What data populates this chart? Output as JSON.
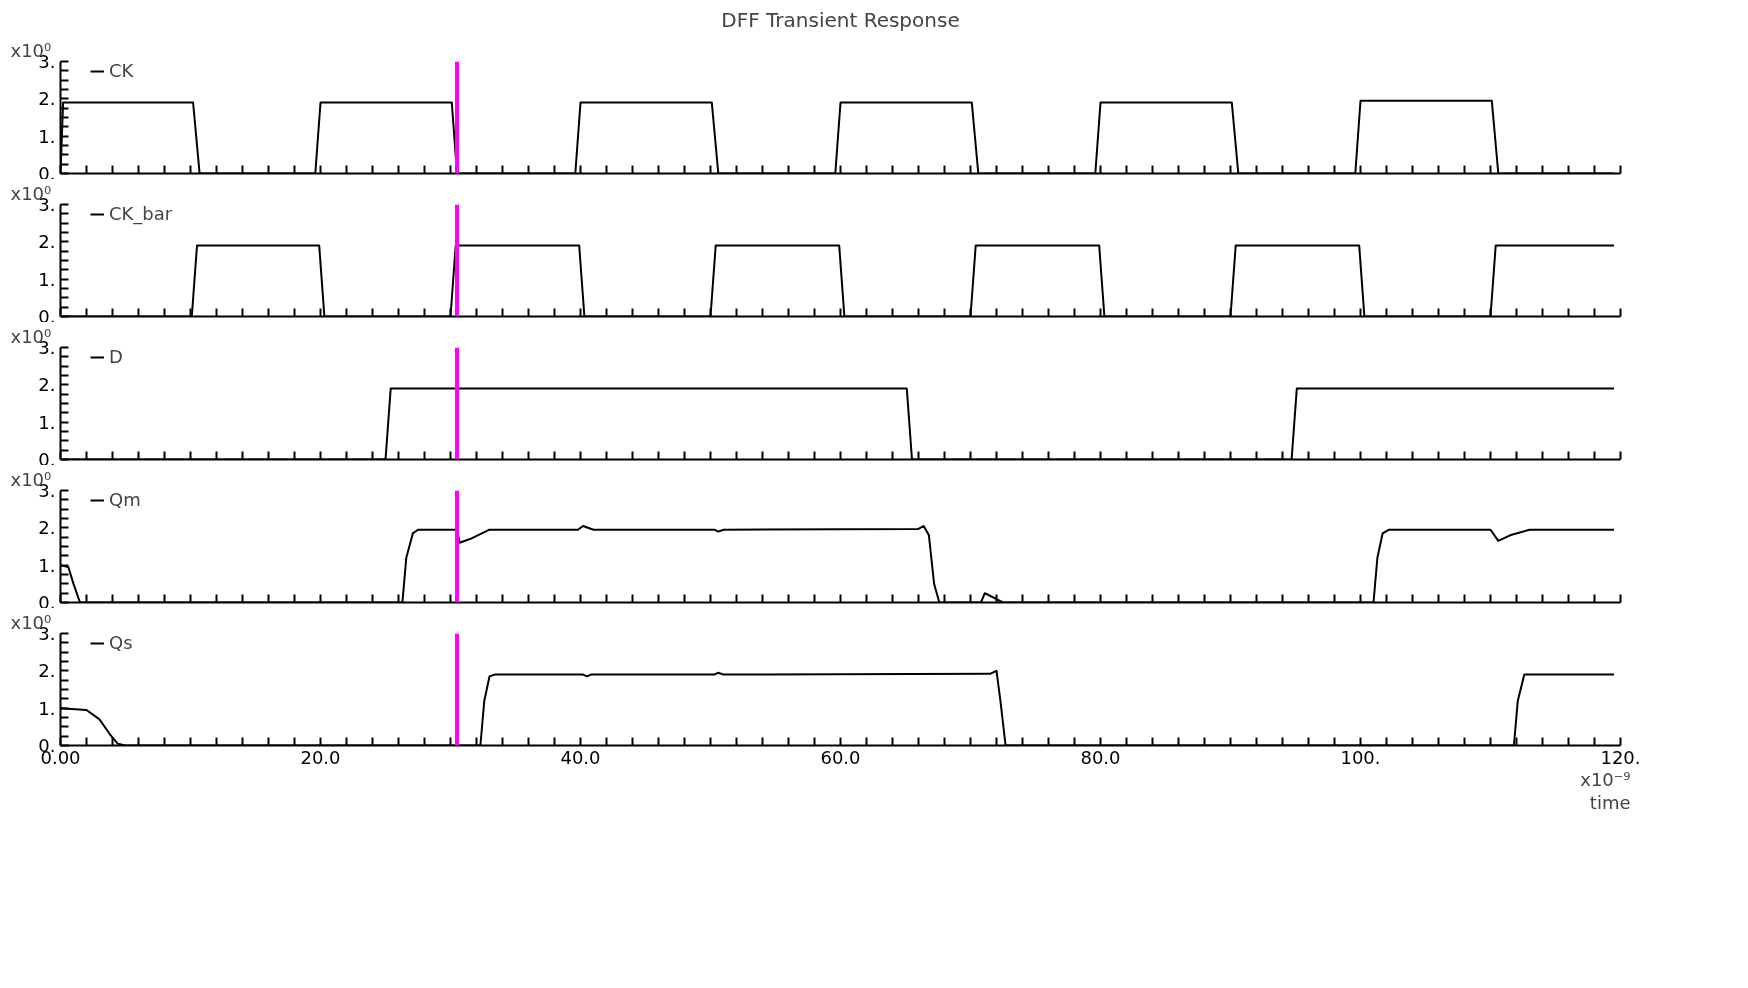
{
  "chart_data": [
    {
      "type": "line",
      "title": "DFF Transient Response",
      "ylabel": "x10⁰",
      "legend": "top left",
      "tick_labels": "y",
      "line_style": "solid",
      "xlim": [
        0,
        120
      ],
      "ylim": [
        0,
        3
      ],
      "xticks": [
        {
          "value": 0,
          "label": null
        },
        {
          "value": 2,
          "label": null
        },
        {
          "value": 4,
          "label": null
        },
        {
          "value": 6,
          "label": null
        },
        {
          "value": 8,
          "label": null
        },
        {
          "value": 10,
          "label": null
        },
        {
          "value": 12,
          "label": null
        },
        {
          "value": 14,
          "label": null
        },
        {
          "value": 16,
          "label": null
        },
        {
          "value": 18,
          "label": null
        },
        {
          "value": 20,
          "label": null
        },
        {
          "value": 22,
          "label": null
        },
        {
          "value": 24,
          "label": null
        },
        {
          "value": 26,
          "label": null
        },
        {
          "value": 28,
          "label": null
        },
        {
          "value": 30,
          "label": null
        },
        {
          "value": 32,
          "label": null
        },
        {
          "value": 34,
          "label": null
        },
        {
          "value": 36,
          "label": null
        },
        {
          "value": 38,
          "label": null
        },
        {
          "value": 40,
          "label": null
        },
        {
          "value": 42,
          "label": null
        },
        {
          "value": 44,
          "label": null
        },
        {
          "value": 46,
          "label": null
        },
        {
          "value": 48,
          "label": null
        },
        {
          "value": 50,
          "label": null
        },
        {
          "value": 52,
          "label": null
        },
        {
          "value": 54,
          "label": null
        },
        {
          "value": 56,
          "label": null
        },
        {
          "value": 58,
          "label": null
        },
        {
          "value": 60,
          "label": null
        },
        {
          "value": 62,
          "label": null
        },
        {
          "value": 64,
          "label": null
        },
        {
          "value": 66,
          "label": null
        },
        {
          "value": 68,
          "label": null
        },
        {
          "value": 70,
          "label": null
        },
        {
          "value": 72,
          "label": null
        },
        {
          "value": 74,
          "label": null
        },
        {
          "value": 76,
          "label": null
        },
        {
          "value": 78,
          "label": null
        },
        {
          "value": 80,
          "label": null
        },
        {
          "value": 82,
          "label": null
        },
        {
          "value": 84,
          "label": null
        },
        {
          "value": 86,
          "label": null
        },
        {
          "value": 88,
          "label": null
        },
        {
          "value": 90,
          "label": null
        },
        {
          "value": 92,
          "label": null
        },
        {
          "value": 94,
          "label": null
        },
        {
          "value": 96,
          "label": null
        },
        {
          "value": 98,
          "label": null
        },
        {
          "value": 100,
          "label": null
        },
        {
          "value": 102,
          "label": null
        },
        {
          "value": 104,
          "label": null
        },
        {
          "value": 106,
          "label": null
        },
        {
          "value": 108,
          "label": null
        },
        {
          "value": 110,
          "label": null
        },
        {
          "value": 112,
          "label": null
        },
        {
          "value": 114,
          "label": null
        },
        {
          "value": 116,
          "label": null
        },
        {
          "value": 118,
          "label": null
        },
        {
          "value": 120,
          "label": null
        }
      ],
      "yticks": [
        {
          "value": 0,
          "label": "0."
        },
        {
          "value": 0.25,
          "label": null
        },
        {
          "value": 0.5,
          "label": null
        },
        {
          "value": 0.75,
          "label": null
        },
        {
          "value": 1,
          "label": "1."
        },
        {
          "value": 1.25,
          "label": null
        },
        {
          "value": 1.5,
          "label": null
        },
        {
          "value": 1.75,
          "label": null
        },
        {
          "value": 2,
          "label": "2."
        },
        {
          "value": 2.25,
          "label": null
        },
        {
          "value": 2.5,
          "label": null
        },
        {
          "value": 2.75,
          "label": null
        },
        {
          "value": 3,
          "label": "3."
        }
      ],
      "ref_lines": [
        {
          "axis": "x",
          "value": 30.5,
          "color": "#ff00ff"
        }
      ],
      "series": [
        {
          "name": "CK",
          "color": "#000000",
          "x": [
            0,
            0.2,
            10.2,
            10.7,
            19.6,
            20.0,
            30.1,
            30.5,
            39.6,
            40.0,
            50.1,
            50.6,
            59.6,
            60.0,
            70.1,
            70.6,
            79.6,
            80.0,
            90.1,
            90.6,
            99.6,
            100.0,
            110.1,
            110.6,
            119.5
          ],
          "values": [
            0,
            1.9,
            1.9,
            0,
            0,
            1.9,
            1.9,
            0,
            0,
            1.9,
            1.9,
            0,
            0,
            1.9,
            1.9,
            0,
            0,
            1.9,
            1.9,
            0,
            0,
            1.95,
            1.95,
            0,
            0
          ]
        }
      ]
    },
    {
      "type": "line",
      "ylabel": "x10⁰",
      "legend": "top left",
      "tick_labels": "y",
      "line_style": "solid",
      "xlim": [
        0,
        120
      ],
      "ylim": [
        0,
        3
      ],
      "xticks": [
        {
          "value": 0,
          "label": null
        },
        {
          "value": 2,
          "label": null
        },
        {
          "value": 4,
          "label": null
        },
        {
          "value": 6,
          "label": null
        },
        {
          "value": 8,
          "label": null
        },
        {
          "value": 10,
          "label": null
        },
        {
          "value": 12,
          "label": null
        },
        {
          "value": 14,
          "label": null
        },
        {
          "value": 16,
          "label": null
        },
        {
          "value": 18,
          "label": null
        },
        {
          "value": 20,
          "label": null
        },
        {
          "value": 22,
          "label": null
        },
        {
          "value": 24,
          "label": null
        },
        {
          "value": 26,
          "label": null
        },
        {
          "value": 28,
          "label": null
        },
        {
          "value": 30,
          "label": null
        },
        {
          "value": 32,
          "label": null
        },
        {
          "value": 34,
          "label": null
        },
        {
          "value": 36,
          "label": null
        },
        {
          "value": 38,
          "label": null
        },
        {
          "value": 40,
          "label": null
        },
        {
          "value": 42,
          "label": null
        },
        {
          "value": 44,
          "label": null
        },
        {
          "value": 46,
          "label": null
        },
        {
          "value": 48,
          "label": null
        },
        {
          "value": 50,
          "label": null
        },
        {
          "value": 52,
          "label": null
        },
        {
          "value": 54,
          "label": null
        },
        {
          "value": 56,
          "label": null
        },
        {
          "value": 58,
          "label": null
        },
        {
          "value": 60,
          "label": null
        },
        {
          "value": 62,
          "label": null
        },
        {
          "value": 64,
          "label": null
        },
        {
          "value": 66,
          "label": null
        },
        {
          "value": 68,
          "label": null
        },
        {
          "value": 70,
          "label": null
        },
        {
          "value": 72,
          "label": null
        },
        {
          "value": 74,
          "label": null
        },
        {
          "value": 76,
          "label": null
        },
        {
          "value": 78,
          "label": null
        },
        {
          "value": 80,
          "label": null
        },
        {
          "value": 82,
          "label": null
        },
        {
          "value": 84,
          "label": null
        },
        {
          "value": 86,
          "label": null
        },
        {
          "value": 88,
          "label": null
        },
        {
          "value": 90,
          "label": null
        },
        {
          "value": 92,
          "label": null
        },
        {
          "value": 94,
          "label": null
        },
        {
          "value": 96,
          "label": null
        },
        {
          "value": 98,
          "label": null
        },
        {
          "value": 100,
          "label": null
        },
        {
          "value": 102,
          "label": null
        },
        {
          "value": 104,
          "label": null
        },
        {
          "value": 106,
          "label": null
        },
        {
          "value": 108,
          "label": null
        },
        {
          "value": 110,
          "label": null
        },
        {
          "value": 112,
          "label": null
        },
        {
          "value": 114,
          "label": null
        },
        {
          "value": 116,
          "label": null
        },
        {
          "value": 118,
          "label": null
        },
        {
          "value": 120,
          "label": null
        }
      ],
      "yticks": [
        {
          "value": 0,
          "label": "0."
        },
        {
          "value": 0.25,
          "label": null
        },
        {
          "value": 0.5,
          "label": null
        },
        {
          "value": 0.75,
          "label": null
        },
        {
          "value": 1,
          "label": "1."
        },
        {
          "value": 1.25,
          "label": null
        },
        {
          "value": 1.5,
          "label": null
        },
        {
          "value": 1.75,
          "label": null
        },
        {
          "value": 2,
          "label": "2."
        },
        {
          "value": 2.25,
          "label": null
        },
        {
          "value": 2.5,
          "label": null
        },
        {
          "value": 2.75,
          "label": null
        },
        {
          "value": 3,
          "label": "3."
        }
      ],
      "ref_lines": [
        {
          "axis": "x",
          "value": 30.5,
          "color": "#ff00ff"
        }
      ],
      "series": [
        {
          "name": "CK_bar",
          "color": "#000000",
          "x": [
            0,
            10.1,
            10.5,
            19.9,
            20.3,
            30.0,
            30.4,
            39.9,
            40.3,
            50.0,
            50.4,
            59.9,
            60.3,
            70.0,
            70.4,
            79.9,
            80.3,
            90.0,
            90.4,
            99.9,
            100.3,
            110.0,
            110.4,
            119.5
          ],
          "values": [
            0,
            0,
            1.9,
            1.9,
            0,
            0,
            1.9,
            1.9,
            0,
            0,
            1.9,
            1.9,
            0,
            0,
            1.9,
            1.9,
            0,
            0,
            1.9,
            1.9,
            0,
            0,
            1.9,
            1.9
          ]
        }
      ]
    },
    {
      "type": "line",
      "ylabel": "x10⁰",
      "legend": "top left",
      "tick_labels": "y",
      "line_style": "solid",
      "xlim": [
        0,
        120
      ],
      "ylim": [
        0,
        3
      ],
      "xticks": [
        {
          "value": 0,
          "label": null
        },
        {
          "value": 2,
          "label": null
        },
        {
          "value": 4,
          "label": null
        },
        {
          "value": 6,
          "label": null
        },
        {
          "value": 8,
          "label": null
        },
        {
          "value": 10,
          "label": null
        },
        {
          "value": 12,
          "label": null
        },
        {
          "value": 14,
          "label": null
        },
        {
          "value": 16,
          "label": null
        },
        {
          "value": 18,
          "label": null
        },
        {
          "value": 20,
          "label": null
        },
        {
          "value": 22,
          "label": null
        },
        {
          "value": 24,
          "label": null
        },
        {
          "value": 26,
          "label": null
        },
        {
          "value": 28,
          "label": null
        },
        {
          "value": 30,
          "label": null
        },
        {
          "value": 32,
          "label": null
        },
        {
          "value": 34,
          "label": null
        },
        {
          "value": 36,
          "label": null
        },
        {
          "value": 38,
          "label": null
        },
        {
          "value": 40,
          "label": null
        },
        {
          "value": 42,
          "label": null
        },
        {
          "value": 44,
          "label": null
        },
        {
          "value": 46,
          "label": null
        },
        {
          "value": 48,
          "label": null
        },
        {
          "value": 50,
          "label": null
        },
        {
          "value": 52,
          "label": null
        },
        {
          "value": 54,
          "label": null
        },
        {
          "value": 56,
          "label": null
        },
        {
          "value": 58,
          "label": null
        },
        {
          "value": 60,
          "label": null
        },
        {
          "value": 62,
          "label": null
        },
        {
          "value": 64,
          "label": null
        },
        {
          "value": 66,
          "label": null
        },
        {
          "value": 68,
          "label": null
        },
        {
          "value": 70,
          "label": null
        },
        {
          "value": 72,
          "label": null
        },
        {
          "value": 74,
          "label": null
        },
        {
          "value": 76,
          "label": null
        },
        {
          "value": 78,
          "label": null
        },
        {
          "value": 80,
          "label": null
        },
        {
          "value": 82,
          "label": null
        },
        {
          "value": 84,
          "label": null
        },
        {
          "value": 86,
          "label": null
        },
        {
          "value": 88,
          "label": null
        },
        {
          "value": 90,
          "label": null
        },
        {
          "value": 92,
          "label": null
        },
        {
          "value": 94,
          "label": null
        },
        {
          "value": 96,
          "label": null
        },
        {
          "value": 98,
          "label": null
        },
        {
          "value": 100,
          "label": null
        },
        {
          "value": 102,
          "label": null
        },
        {
          "value": 104,
          "label": null
        },
        {
          "value": 106,
          "label": null
        },
        {
          "value": 108,
          "label": null
        },
        {
          "value": 110,
          "label": null
        },
        {
          "value": 112,
          "label": null
        },
        {
          "value": 114,
          "label": null
        },
        {
          "value": 116,
          "label": null
        },
        {
          "value": 118,
          "label": null
        },
        {
          "value": 120,
          "label": null
        }
      ],
      "yticks": [
        {
          "value": 0,
          "label": "0."
        },
        {
          "value": 0.25,
          "label": null
        },
        {
          "value": 0.5,
          "label": null
        },
        {
          "value": 0.75,
          "label": null
        },
        {
          "value": 1,
          "label": "1."
        },
        {
          "value": 1.25,
          "label": null
        },
        {
          "value": 1.5,
          "label": null
        },
        {
          "value": 1.75,
          "label": null
        },
        {
          "value": 2,
          "label": "2."
        },
        {
          "value": 2.25,
          "label": null
        },
        {
          "value": 2.5,
          "label": null
        },
        {
          "value": 2.75,
          "label": null
        },
        {
          "value": 3,
          "label": "3."
        }
      ],
      "ref_lines": [
        {
          "axis": "x",
          "value": 30.5,
          "color": "#ff00ff"
        }
      ],
      "series": [
        {
          "name": "D",
          "color": "#000000",
          "x": [
            0,
            25.0,
            25.4,
            65.1,
            65.5,
            94.7,
            95.1,
            119.5
          ],
          "values": [
            0,
            0,
            1.9,
            1.9,
            0,
            0,
            1.9,
            1.9
          ]
        }
      ]
    },
    {
      "type": "line",
      "ylabel": "x10⁰",
      "legend": "top left",
      "tick_labels": "y",
      "line_style": "solid",
      "xlim": [
        0,
        120
      ],
      "ylim": [
        0,
        3
      ],
      "xticks": [
        {
          "value": 0,
          "label": null
        },
        {
          "value": 2,
          "label": null
        },
        {
          "value": 4,
          "label": null
        },
        {
          "value": 6,
          "label": null
        },
        {
          "value": 8,
          "label": null
        },
        {
          "value": 10,
          "label": null
        },
        {
          "value": 12,
          "label": null
        },
        {
          "value": 14,
          "label": null
        },
        {
          "value": 16,
          "label": null
        },
        {
          "value": 18,
          "label": null
        },
        {
          "value": 20,
          "label": null
        },
        {
          "value": 22,
          "label": null
        },
        {
          "value": 24,
          "label": null
        },
        {
          "value": 26,
          "label": null
        },
        {
          "value": 28,
          "label": null
        },
        {
          "value": 30,
          "label": null
        },
        {
          "value": 32,
          "label": null
        },
        {
          "value": 34,
          "label": null
        },
        {
          "value": 36,
          "label": null
        },
        {
          "value": 38,
          "label": null
        },
        {
          "value": 40,
          "label": null
        },
        {
          "value": 42,
          "label": null
        },
        {
          "value": 44,
          "label": null
        },
        {
          "value": 46,
          "label": null
        },
        {
          "value": 48,
          "label": null
        },
        {
          "value": 50,
          "label": null
        },
        {
          "value": 52,
          "label": null
        },
        {
          "value": 54,
          "label": null
        },
        {
          "value": 56,
          "label": null
        },
        {
          "value": 58,
          "label": null
        },
        {
          "value": 60,
          "label": null
        },
        {
          "value": 62,
          "label": null
        },
        {
          "value": 64,
          "label": null
        },
        {
          "value": 66,
          "label": null
        },
        {
          "value": 68,
          "label": null
        },
        {
          "value": 70,
          "label": null
        },
        {
          "value": 72,
          "label": null
        },
        {
          "value": 74,
          "label": null
        },
        {
          "value": 76,
          "label": null
        },
        {
          "value": 78,
          "label": null
        },
        {
          "value": 80,
          "label": null
        },
        {
          "value": 82,
          "label": null
        },
        {
          "value": 84,
          "label": null
        },
        {
          "value": 86,
          "label": null
        },
        {
          "value": 88,
          "label": null
        },
        {
          "value": 90,
          "label": null
        },
        {
          "value": 92,
          "label": null
        },
        {
          "value": 94,
          "label": null
        },
        {
          "value": 96,
          "label": null
        },
        {
          "value": 98,
          "label": null
        },
        {
          "value": 100,
          "label": null
        },
        {
          "value": 102,
          "label": null
        },
        {
          "value": 104,
          "label": null
        },
        {
          "value": 106,
          "label": null
        },
        {
          "value": 108,
          "label": null
        },
        {
          "value": 110,
          "label": null
        },
        {
          "value": 112,
          "label": null
        },
        {
          "value": 114,
          "label": null
        },
        {
          "value": 116,
          "label": null
        },
        {
          "value": 118,
          "label": null
        },
        {
          "value": 120,
          "label": null
        }
      ],
      "yticks": [
        {
          "value": 0,
          "label": "0."
        },
        {
          "value": 0.25,
          "label": null
        },
        {
          "value": 0.5,
          "label": null
        },
        {
          "value": 0.75,
          "label": null
        },
        {
          "value": 1,
          "label": "1."
        },
        {
          "value": 1.25,
          "label": null
        },
        {
          "value": 1.5,
          "label": null
        },
        {
          "value": 1.75,
          "label": null
        },
        {
          "value": 2,
          "label": "2."
        },
        {
          "value": 2.25,
          "label": null
        },
        {
          "value": 2.5,
          "label": null
        },
        {
          "value": 2.75,
          "label": null
        },
        {
          "value": 3,
          "label": "3."
        }
      ],
      "ref_lines": [
        {
          "axis": "x",
          "value": 30.5,
          "color": "#ff00ff"
        }
      ],
      "series": [
        {
          "name": "Qm",
          "color": "#000000",
          "x": [
            0,
            0.6,
            1.0,
            1.5,
            26.3,
            26.6,
            27.1,
            27.5,
            30.5,
            30.7,
            31.5,
            33,
            39.8,
            40.2,
            41,
            50.3,
            50.6,
            51,
            66,
            66.4,
            66.8,
            67.2,
            67.6,
            70.8,
            71.1,
            72.5,
            101.0,
            101.3,
            101.7,
            102.2,
            110,
            110.6,
            111.5,
            113,
            119.5
          ],
          "values": [
            1.0,
            0.95,
            0.5,
            0,
            0,
            1.2,
            1.85,
            1.95,
            1.95,
            1.6,
            1.7,
            1.95,
            1.95,
            2.05,
            1.95,
            1.95,
            1.9,
            1.95,
            1.97,
            2.05,
            1.8,
            0.5,
            0,
            0,
            0.25,
            0,
            0,
            1.2,
            1.85,
            1.95,
            1.95,
            1.65,
            1.8,
            1.95,
            1.95
          ]
        }
      ]
    },
    {
      "type": "line",
      "ylabel": "x10⁰",
      "xlabel": "time",
      "legend": "top left",
      "line_style": "solid",
      "xlim": [
        0,
        120
      ],
      "ylim": [
        0,
        3
      ],
      "yticks": [
        {
          "value": 0,
          "label": "0."
        },
        {
          "value": 0.25,
          "label": null
        },
        {
          "value": 0.5,
          "label": null
        },
        {
          "value": 0.75,
          "label": null
        },
        {
          "value": 1,
          "label": "1."
        },
        {
          "value": 1.25,
          "label": null
        },
        {
          "value": 1.5,
          "label": null
        },
        {
          "value": 1.75,
          "label": null
        },
        {
          "value": 2,
          "label": "2."
        },
        {
          "value": 2.25,
          "label": null
        },
        {
          "value": 2.5,
          "label": null
        },
        {
          "value": 2.75,
          "label": null
        },
        {
          "value": 3,
          "label": "3."
        }
      ],
      "xticks": [
        {
          "value": 0,
          "label": "0.00"
        },
        {
          "value": 2,
          "label": null
        },
        {
          "value": 4,
          "label": null
        },
        {
          "value": 6,
          "label": null
        },
        {
          "value": 8,
          "label": null
        },
        {
          "value": 10,
          "label": null
        },
        {
          "value": 12,
          "label": null
        },
        {
          "value": 14,
          "label": null
        },
        {
          "value": 16,
          "label": null
        },
        {
          "value": 18,
          "label": null
        },
        {
          "value": 20,
          "label": "20.0"
        },
        {
          "value": 22,
          "label": null
        },
        {
          "value": 24,
          "label": null
        },
        {
          "value": 26,
          "label": null
        },
        {
          "value": 28,
          "label": null
        },
        {
          "value": 30,
          "label": null
        },
        {
          "value": 32,
          "label": null
        },
        {
          "value": 34,
          "label": null
        },
        {
          "value": 36,
          "label": null
        },
        {
          "value": 38,
          "label": null
        },
        {
          "value": 40,
          "label": "40.0"
        },
        {
          "value": 42,
          "label": null
        },
        {
          "value": 44,
          "label": null
        },
        {
          "value": 46,
          "label": null
        },
        {
          "value": 48,
          "label": null
        },
        {
          "value": 50,
          "label": null
        },
        {
          "value": 52,
          "label": null
        },
        {
          "value": 54,
          "label": null
        },
        {
          "value": 56,
          "label": null
        },
        {
          "value": 58,
          "label": null
        },
        {
          "value": 60,
          "label": "60.0"
        },
        {
          "value": 62,
          "label": null
        },
        {
          "value": 64,
          "label": null
        },
        {
          "value": 66,
          "label": null
        },
        {
          "value": 68,
          "label": null
        },
        {
          "value": 70,
          "label": null
        },
        {
          "value": 72,
          "label": null
        },
        {
          "value": 74,
          "label": null
        },
        {
          "value": 76,
          "label": null
        },
        {
          "value": 78,
          "label": null
        },
        {
          "value": 80,
          "label": "80.0"
        },
        {
          "value": 82,
          "label": null
        },
        {
          "value": 84,
          "label": null
        },
        {
          "value": 86,
          "label": null
        },
        {
          "value": 88,
          "label": null
        },
        {
          "value": 90,
          "label": null
        },
        {
          "value": 92,
          "label": null
        },
        {
          "value": 94,
          "label": null
        },
        {
          "value": 96,
          "label": null
        },
        {
          "value": 98,
          "label": null
        },
        {
          "value": 100,
          "label": "100."
        },
        {
          "value": 102,
          "label": null
        },
        {
          "value": 104,
          "label": null
        },
        {
          "value": 106,
          "label": null
        },
        {
          "value": 108,
          "label": null
        },
        {
          "value": 110,
          "label": null
        },
        {
          "value": 112,
          "label": null
        },
        {
          "value": 114,
          "label": null
        },
        {
          "value": 116,
          "label": null
        },
        {
          "value": 118,
          "label": null
        },
        {
          "value": 120,
          "label": "120."
        }
      ],
      "annotations": [
        "x10⁻⁹"
      ],
      "ref_lines": [
        {
          "axis": "x",
          "value": 30.5,
          "color": "#ff00ff"
        }
      ],
      "series": [
        {
          "name": "Qs",
          "color": "#000000",
          "x": [
            0,
            2.0,
            3.0,
            3.8,
            4.4,
            5,
            32.3,
            32.6,
            33.0,
            33.4,
            40.2,
            40.5,
            40.8,
            50.3,
            50.6,
            51,
            71.5,
            72,
            72.3,
            72.7,
            111.8,
            112.1,
            112.6,
            119.5
          ],
          "values": [
            1.0,
            0.95,
            0.7,
            0.3,
            0.05,
            0,
            0,
            1.2,
            1.85,
            1.9,
            1.9,
            1.85,
            1.9,
            1.9,
            1.95,
            1.9,
            1.92,
            2.0,
            1.2,
            0,
            0,
            1.2,
            1.9,
            1.9
          ]
        }
      ]
    }
  ]
}
